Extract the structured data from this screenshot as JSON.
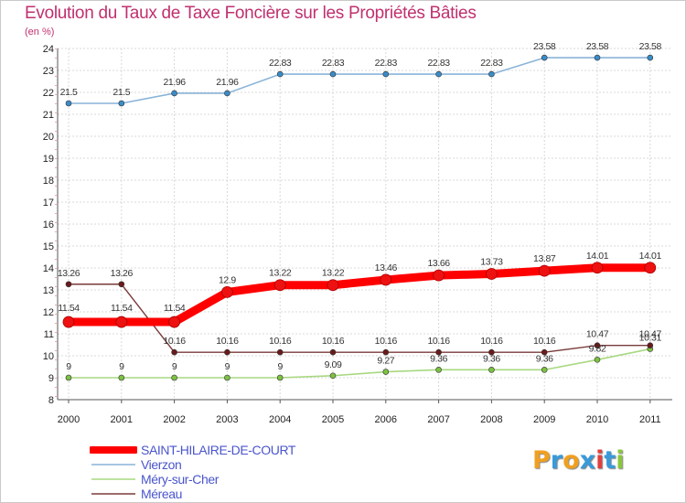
{
  "header": {
    "title": "Evolution du Taux de Taxe Foncière sur les Propriétés Bâties",
    "unit": "(en %)"
  },
  "logo": {
    "text": "Proxiti",
    "letters": [
      {
        "ch": "P",
        "color": "#f0a020"
      },
      {
        "ch": "r",
        "color": "#3a9ad9"
      },
      {
        "ch": "o",
        "color": "#f0a020"
      },
      {
        "ch": "x",
        "color": "#3a9ad9"
      },
      {
        "ch": "i",
        "color": "#e04040"
      },
      {
        "ch": "t",
        "color": "#3a9ad9"
      },
      {
        "ch": "i",
        "color": "#8cc63f"
      }
    ]
  },
  "chart_data": {
    "type": "line",
    "title": "Evolution du Taux de Taxe Foncière sur les Propriétés Bâties",
    "ylabel": "(en %)",
    "xlabel": "",
    "ylim": [
      8,
      24
    ],
    "yticks": [
      8,
      9,
      10,
      11,
      12,
      13,
      14,
      15,
      16,
      17,
      18,
      19,
      20,
      21,
      22,
      23,
      24
    ],
    "grid": true,
    "legend_position": "bottom-left",
    "categories": [
      "2000",
      "2001",
      "2002",
      "2003",
      "2004",
      "2005",
      "2006",
      "2007",
      "2008",
      "2009",
      "2010",
      "2011"
    ],
    "series": [
      {
        "name": "SAINT-HILAIRE-DE-COURT",
        "color": "#ff0000",
        "marker": "#ee1111",
        "values": [
          11.54,
          11.54,
          11.54,
          12.9,
          13.22,
          13.22,
          13.46,
          13.66,
          13.73,
          13.87,
          14.01,
          14.01
        ],
        "labels": [
          "11.54",
          "11.54",
          "11.54",
          "12.9",
          "13.22",
          "13.22",
          "13.46",
          "13.66",
          "13.73",
          "13.87",
          "14.01",
          "14.01"
        ]
      },
      {
        "name": "Vierzon",
        "color": "#8ab4d8",
        "marker": "#3a8cc8",
        "values": [
          21.5,
          21.5,
          21.96,
          21.96,
          22.83,
          22.83,
          22.83,
          22.83,
          22.83,
          23.58,
          23.58,
          23.58
        ],
        "labels": [
          "21.5",
          "21.5",
          "21.96",
          "21.96",
          "22.83",
          "22.83",
          "22.83",
          "22.83",
          "22.83",
          "23.58",
          "23.58",
          "23.58"
        ]
      },
      {
        "name": "Méry-sur-Cher",
        "color": "#a8d880",
        "marker": "#7dc142",
        "values": [
          9,
          9,
          9,
          9,
          9,
          9.09,
          9.27,
          9.36,
          9.36,
          9.36,
          9.82,
          10.31
        ],
        "labels": [
          "9",
          "9",
          "9",
          "9",
          "9",
          "9.09",
          "9.27",
          "9.36",
          "9.36",
          "9.36",
          "9.82",
          "10.31"
        ]
      },
      {
        "name": "Méreau",
        "color": "#7a3a3a",
        "marker": "#6a1a1a",
        "values": [
          13.26,
          13.26,
          10.16,
          10.16,
          10.16,
          10.16,
          10.16,
          10.16,
          10.16,
          10.16,
          10.47,
          10.47
        ],
        "labels": [
          "13.26",
          "13.26",
          "10.16",
          "10.16",
          "10.16",
          "10.16",
          "10.16",
          "10.16",
          "10.16",
          "10.16",
          "10.47",
          "10.47"
        ]
      }
    ]
  }
}
